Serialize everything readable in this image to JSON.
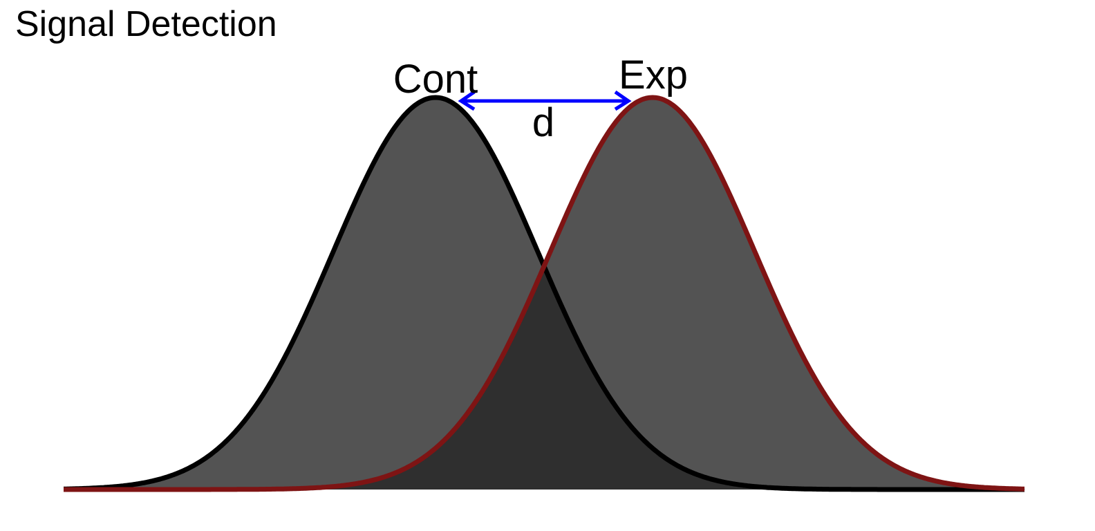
{
  "title": "Signal Detection",
  "labels": {
    "control": "Cont",
    "experimental": "Exp",
    "distance": "d"
  },
  "colors": {
    "control_curve": "#000000",
    "experimental_curve": "#7e1414",
    "fill": "#535353",
    "overlap_fill": "#2f2f2f",
    "arrow": "#0000ff"
  }
}
